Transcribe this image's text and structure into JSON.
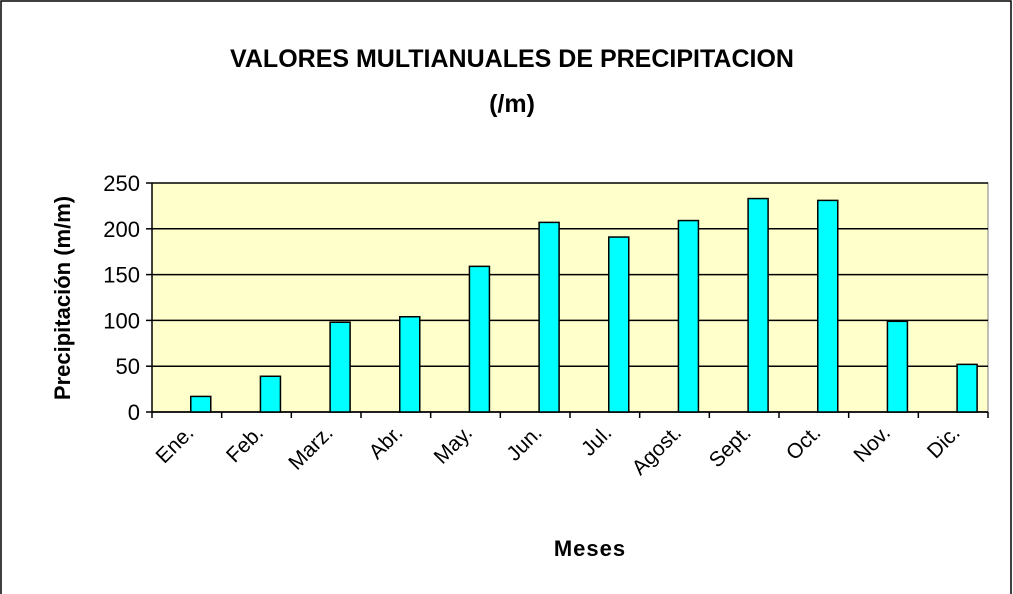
{
  "chart_data": {
    "type": "bar",
    "title": [
      "VALORES MULTIANUALES DE PRECIPITACION",
      "(/m)"
    ],
    "x_label": "Meses",
    "y_label": "Precipitación (m/m)",
    "categories": [
      "Ene.",
      "Feb.",
      "Marz.",
      "Abr.",
      "May.",
      "Jun.",
      "Jul.",
      "Agost.",
      "Sept.",
      "Oct.",
      "Nov.",
      "Dic."
    ],
    "values": [
      17,
      39,
      98,
      104,
      159,
      207,
      191,
      209,
      233,
      231,
      99,
      52
    ],
    "color": "#00ffff",
    "plot_background": "#ffffcc",
    "ylim": [
      0,
      250
    ],
    "yticks": [
      0,
      50,
      100,
      150,
      200,
      250
    ],
    "grid": true
  }
}
